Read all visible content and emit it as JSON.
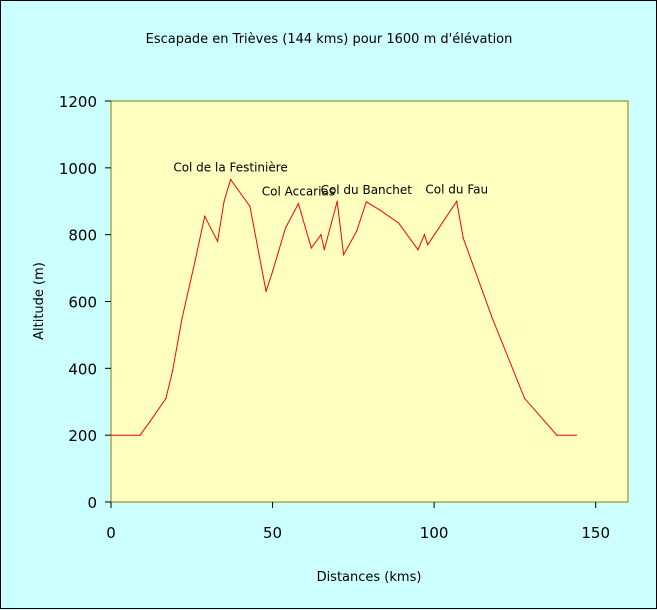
{
  "chart_data": {
    "type": "line",
    "title": "Escapade en Trièves (144 kms) pour 1600 m d'élévation",
    "xlabel": "Distances (kms)",
    "ylabel": "Altitude (m)",
    "xlim": [
      0,
      160
    ],
    "ylim": [
      0,
      1200
    ],
    "x_ticks": [
      "0",
      "50",
      "100",
      "150"
    ],
    "y_ticks": [
      "0",
      "200",
      "400",
      "600",
      "800",
      "1000",
      "1200"
    ],
    "grid": false,
    "legend": "none",
    "colors": {
      "background": "#ccffff",
      "plot_area": "#ffffc0",
      "plot_border": "#808000",
      "line": "#ff0000"
    },
    "series": [
      {
        "x": [
          0,
          9,
          12,
          17,
          19,
          22,
          26,
          29,
          33,
          35,
          37,
          43,
          48,
          50,
          54,
          58,
          62,
          65,
          66,
          70,
          72,
          76,
          79,
          83,
          89,
          95,
          97,
          98,
          107,
          109,
          118,
          128,
          138,
          144
        ],
        "values": [
          200,
          200,
          240,
          310,
          390,
          550,
          720,
          855,
          780,
          900,
          965,
          885,
          630,
          690,
          820,
          893,
          760,
          800,
          755,
          900,
          740,
          810,
          898,
          875,
          835,
          755,
          800,
          770,
          900,
          790,
          550,
          310,
          200,
          200
        ]
      }
    ],
    "annotations": [
      {
        "text": "Col de la Festinière",
        "x": 37,
        "y": 965
      },
      {
        "text": "Col Accarias",
        "x": 58,
        "y": 893
      },
      {
        "text": "Col du Banchet",
        "x": 79,
        "y": 898
      },
      {
        "text": "Col du Fau",
        "x": 107,
        "y": 900
      }
    ]
  }
}
